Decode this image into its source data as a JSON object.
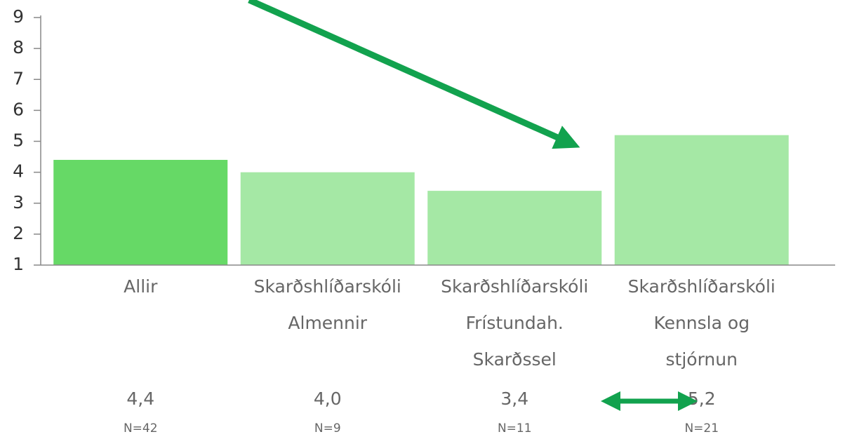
{
  "chart_data": {
    "type": "bar",
    "categories": [
      [
        "Allir"
      ],
      [
        "Skarðshlíðarskóli",
        "Almennir"
      ],
      [
        "Skarðshlíðarskóli",
        "Frístundah.",
        "Skarðssel"
      ],
      [
        "Skarðshlíðarskóli",
        "Kennsla og",
        "stjórnun"
      ]
    ],
    "values": [
      4.4,
      4.0,
      3.4,
      5.2
    ],
    "value_labels": [
      "4,4",
      "4,0",
      "3,4",
      "5,2"
    ],
    "n_labels": [
      "N=42",
      "N=9",
      "N=11",
      "N=21"
    ],
    "colors": [
      "#66d966",
      "#a5e8a5",
      "#a5e8a5",
      "#a5e8a5"
    ],
    "ylim": [
      1,
      9
    ],
    "yticks": [
      1,
      2,
      3,
      4,
      5,
      6,
      7,
      8,
      9
    ]
  }
}
